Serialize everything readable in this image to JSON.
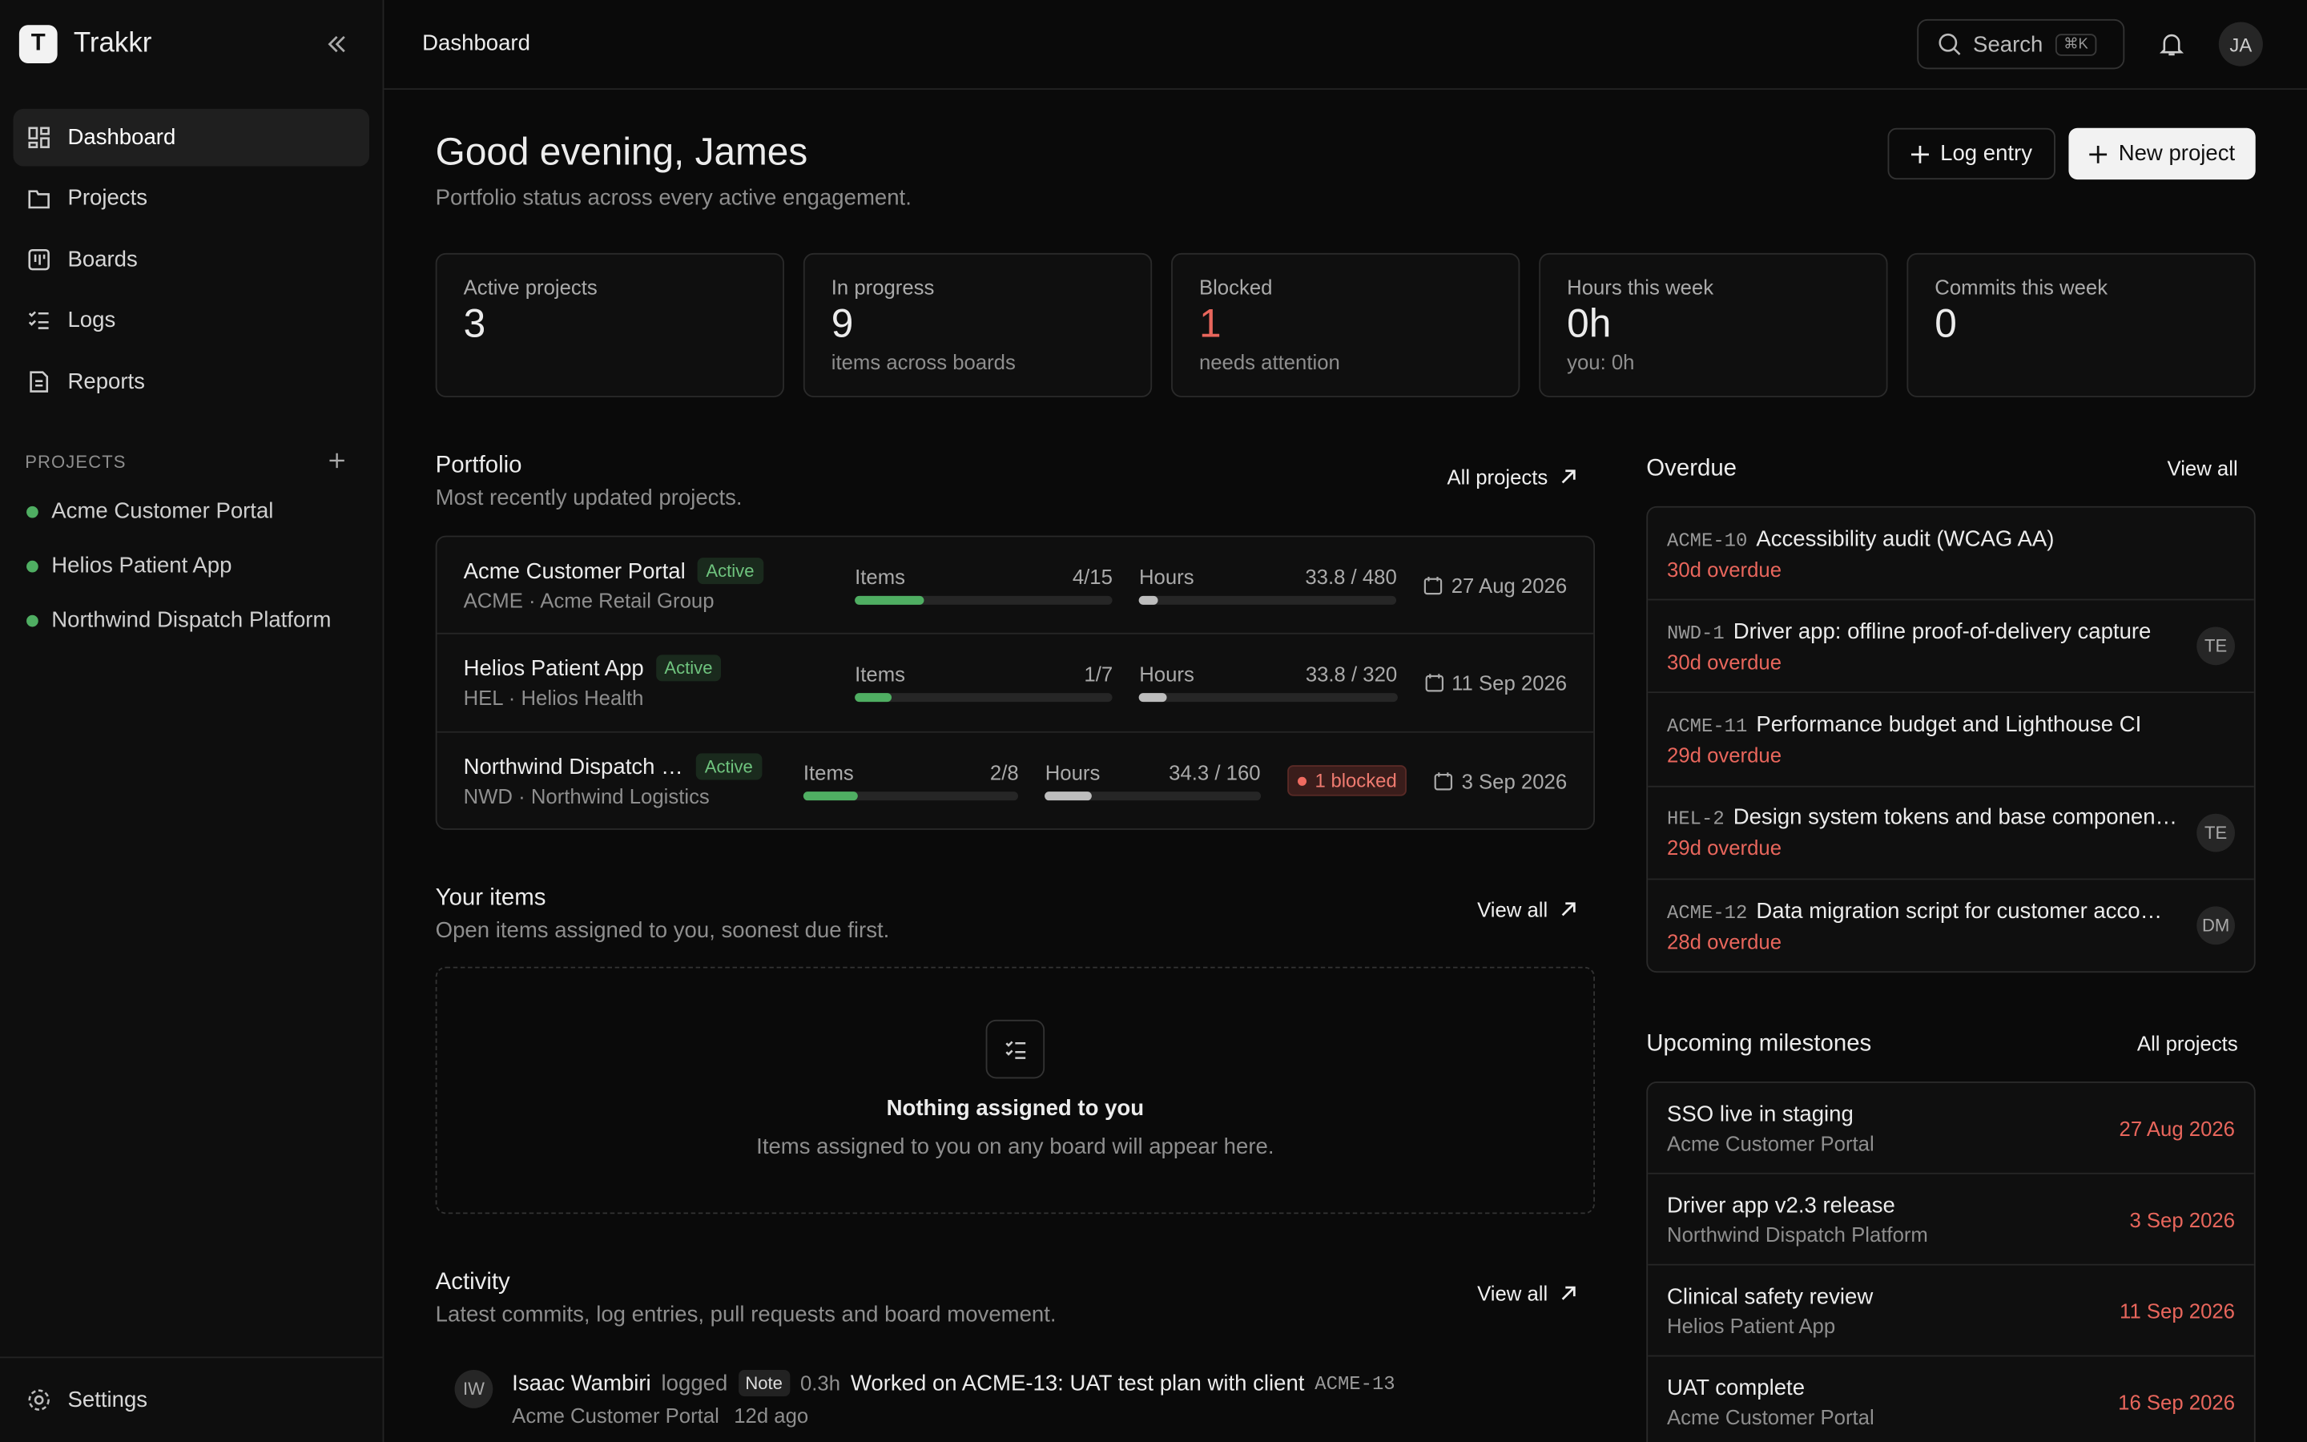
{
  "app": {
    "name": "Trakkr",
    "logo": "T",
    "nav": [
      "Dashboard",
      "Projects",
      "Boards",
      "Logs",
      "Reports"
    ],
    "projects_heading": "PROJECTS",
    "projects": [
      "Acme Customer Portal",
      "Helios Patient App",
      "Northwind Dispatch Platform"
    ],
    "settings": "Settings"
  },
  "topbar": {
    "page": "Dashboard",
    "search": "Search",
    "shortcut": "⌘K",
    "avatar": "JA"
  },
  "header": {
    "title": "Good evening, James",
    "subtitle": "Portfolio status across every active engagement.",
    "buttons": [
      "Log entry",
      "New project"
    ]
  },
  "stats": [
    {
      "label": "Active projects",
      "value": 3
    },
    {
      "label": "In progress",
      "value": 9,
      "note": "items across boards"
    },
    {
      "label": "Blocked",
      "value": 1,
      "note": "needs attention"
    },
    {
      "label": "Hours this week",
      "value": "0h",
      "note": "you: 0h"
    },
    {
      "label": "Commits this week",
      "value": 0
    }
  ],
  "portfolio": {
    "title": "Portfolio",
    "subtitle": "Most recently updated projects.",
    "link": "All projects",
    "items_label": "Items",
    "hours_label": "Hours",
    "projects": [
      {
        "name": "Acme Customer Portal",
        "status": "Active",
        "client": "ACME · Acme Retail Group",
        "items": {
          "value": 4,
          "total": 15,
          "label": "4/15"
        },
        "hours": {
          "value": 33.8,
          "total": 480,
          "label": "33.8 / 480"
        },
        "due": "27 Aug 2026"
      },
      {
        "name": "Helios Patient App",
        "status": "Active",
        "client": "HEL · Helios Health",
        "items": {
          "value": 1,
          "total": 7,
          "label": "1/7"
        },
        "hours": {
          "value": 33.8,
          "total": 320,
          "label": "33.8 / 320"
        },
        "due": "11 Sep 2026"
      },
      {
        "name": "Northwind Dispatch Platform",
        "status": "Active",
        "client": "NWD · Northwind Logistics",
        "items": {
          "value": 2,
          "total": 8,
          "label": "2/8"
        },
        "hours": {
          "value": 34.3,
          "total": 160,
          "label": "34.3 / 160"
        },
        "blocked": "1 blocked",
        "due": "3 Sep 2026"
      }
    ]
  },
  "your_items": {
    "title": "Your items",
    "subtitle": "Open items assigned to you, soonest due first.",
    "link": "View all",
    "empty_title": "Nothing assigned to you",
    "empty_text": "Items assigned to you on any board will appear here."
  },
  "activity": {
    "title": "Activity",
    "subtitle": "Latest commits, log entries, pull requests and board movement.",
    "link": "View all",
    "entries": [
      {
        "initials": "IW",
        "user": "Isaac Wambiri",
        "action": "logged",
        "tag": "Note",
        "hours": "0.3h",
        "text": "Worked on ACME-13: UAT test plan with client",
        "ref": "ACME-13",
        "project": "Acme Customer Portal",
        "time": "12d ago"
      }
    ]
  },
  "overdue": {
    "title": "Overdue",
    "link": "View all",
    "items": [
      {
        "key": "ACME-10",
        "title": "Accessibility audit (WCAG AA)",
        "due": "30d overdue"
      },
      {
        "key": "NWD-1",
        "title": "Driver app: offline proof-of-delivery capture",
        "due": "30d overdue",
        "assignee": "TE"
      },
      {
        "key": "ACME-11",
        "title": "Performance budget and Lighthouse CI",
        "due": "29d overdue"
      },
      {
        "key": "HEL-2",
        "title": "Design system tokens and base componen…",
        "due": "29d overdue",
        "assignee": "TE"
      },
      {
        "key": "ACME-12",
        "title": "Data migration script for customer acco…",
        "due": "28d overdue",
        "assignee": "DM"
      }
    ]
  },
  "milestones": {
    "title": "Upcoming milestones",
    "link": "All projects",
    "items": [
      {
        "title": "SSO live in staging",
        "project": "Acme Customer Portal",
        "date": "27 Aug 2026"
      },
      {
        "title": "Driver app v2.3 release",
        "project": "Northwind Dispatch Platform",
        "date": "3 Sep 2026"
      },
      {
        "title": "Clinical safety review",
        "project": "Helios Patient App",
        "date": "11 Sep 2026"
      },
      {
        "title": "UAT complete",
        "project": "Acme Customer Portal",
        "date": "16 Sep 2026"
      }
    ]
  }
}
